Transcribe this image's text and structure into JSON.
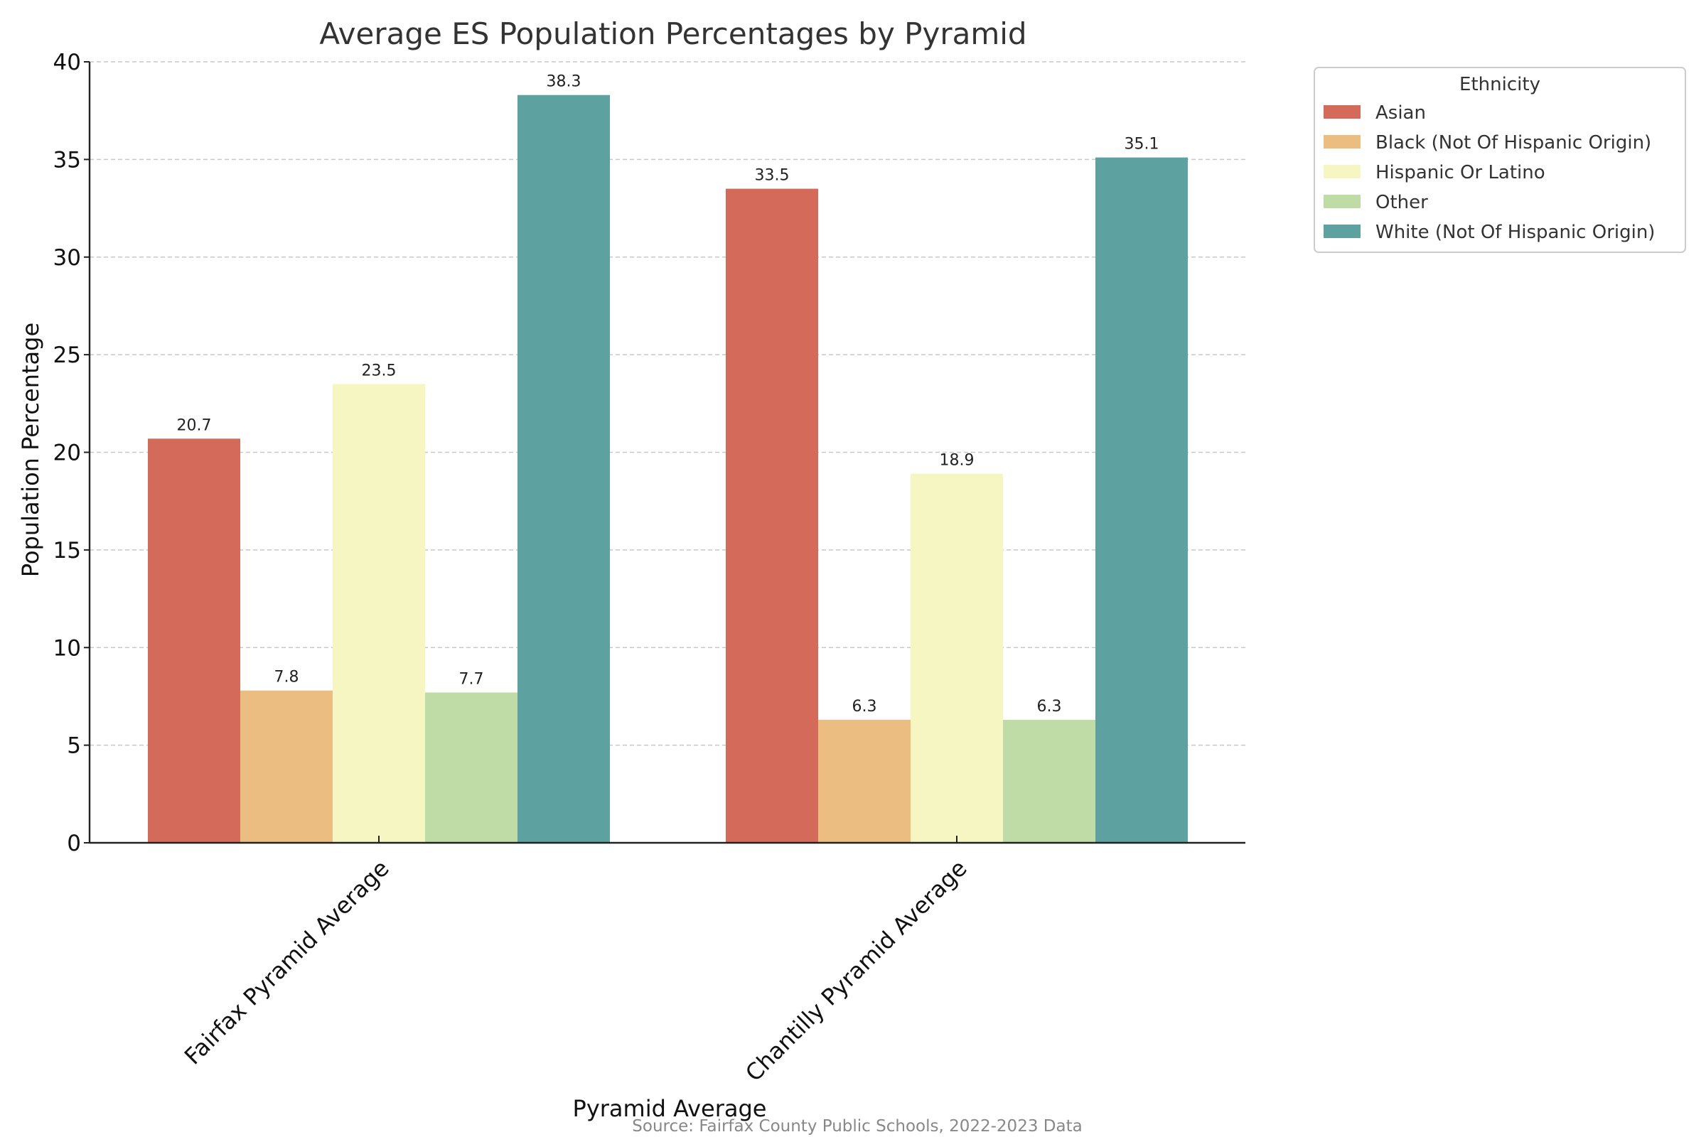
{
  "chart_data": {
    "type": "bar",
    "title": "Average ES Population Percentages by Pyramid",
    "xlabel": "Pyramid Average",
    "ylabel": "Population Percentage",
    "source": "Source: Fairfax County Public Schools, 2022-2023 Data",
    "categories": [
      "Fairfax Pyramid Average",
      "Chantilly Pyramid Average"
    ],
    "ylim": [
      0,
      40
    ],
    "yticks": [
      0,
      5,
      10,
      15,
      20,
      25,
      30,
      35,
      40
    ],
    "grid": true,
    "legend": {
      "title": "Ethnicity",
      "placement": "outside-top-right"
    },
    "series": [
      {
        "name": "Asian",
        "color": "#d46a5a",
        "values": [
          20.7,
          33.5
        ],
        "labels": [
          "20.7",
          "33.5"
        ]
      },
      {
        "name": "Black (Not Of Hispanic Origin)",
        "color": "#ebbd80",
        "values": [
          7.8,
          6.3
        ],
        "labels": [
          "7.8",
          "6.3"
        ]
      },
      {
        "name": "Hispanic Or Latino",
        "color": "#f6f6c3",
        "values": [
          23.5,
          18.9
        ],
        "labels": [
          "23.5",
          "18.9"
        ]
      },
      {
        "name": "Other",
        "color": "#c0dca6",
        "values": [
          7.7,
          6.3
        ],
        "labels": [
          "7.7",
          "6.3"
        ]
      },
      {
        "name": "White (Not Of Hispanic Origin)",
        "color": "#5da2a0",
        "values": [
          38.3,
          35.1
        ],
        "labels": [
          "38.3",
          "35.1"
        ]
      }
    ]
  }
}
